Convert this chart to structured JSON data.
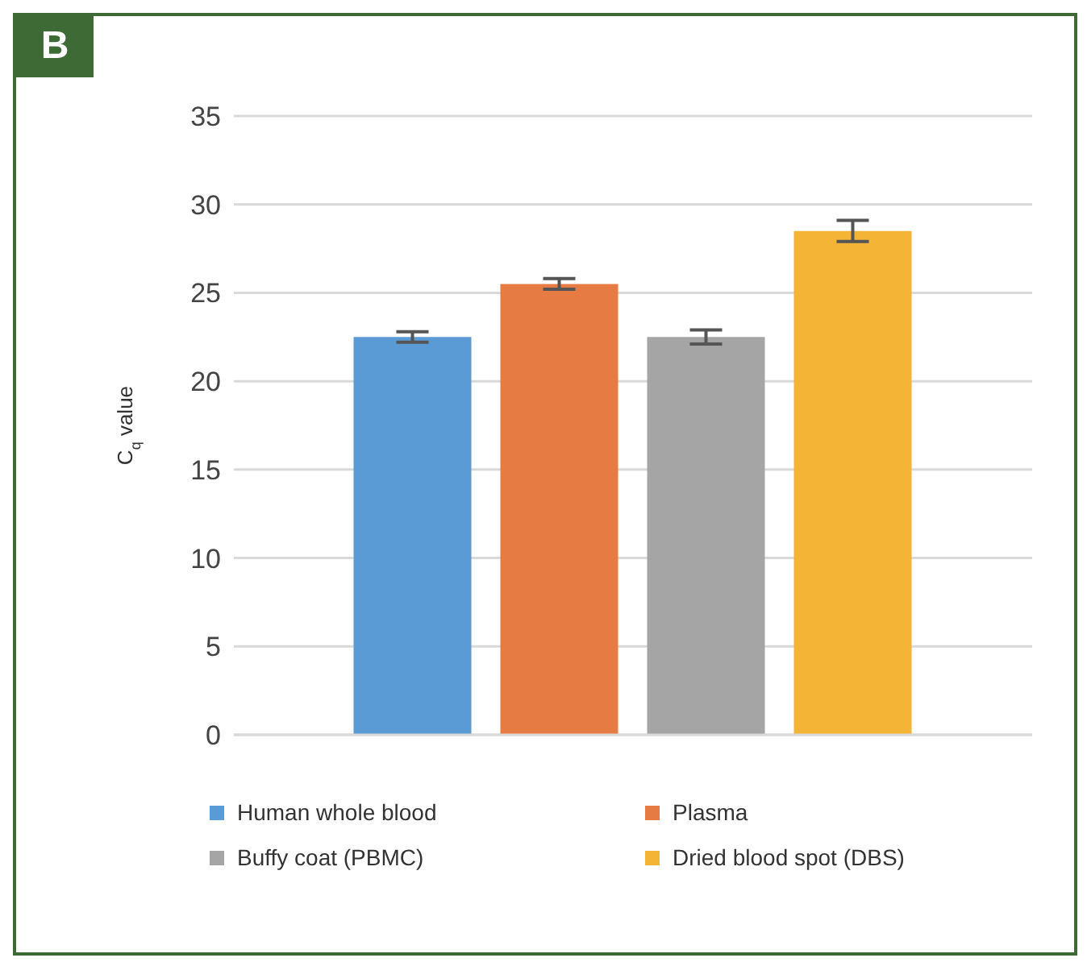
{
  "chart_data": {
    "type": "bar",
    "ylabel": "C$_{q}$ value",
    "annotations": [
      "B"
    ],
    "categories": [
      null
    ],
    "series": [
      {
        "name": "Human whole blood",
        "color": "#5b9bd5",
        "values": [
          22.5
        ],
        "errors": [
          0.3
        ]
      },
      {
        "name": "Plasma",
        "color": "#e67c43",
        "values": [
          25.5
        ],
        "errors": [
          0.3
        ]
      },
      {
        "name": "Buffy coat (PBMC)",
        "color": "#a5a5a5",
        "values": [
          22.5
        ],
        "errors": [
          0.4
        ]
      },
      {
        "name": "Dried blood spot (DBS)",
        "color": "#f4b436",
        "values": [
          28.5
        ],
        "errors": [
          0.6
        ]
      }
    ],
    "ylim": [
      0,
      35
    ],
    "yticks": [
      0,
      5,
      10,
      15,
      20,
      25,
      30,
      35
    ],
    "grid": "y",
    "legend": "bottom"
  }
}
